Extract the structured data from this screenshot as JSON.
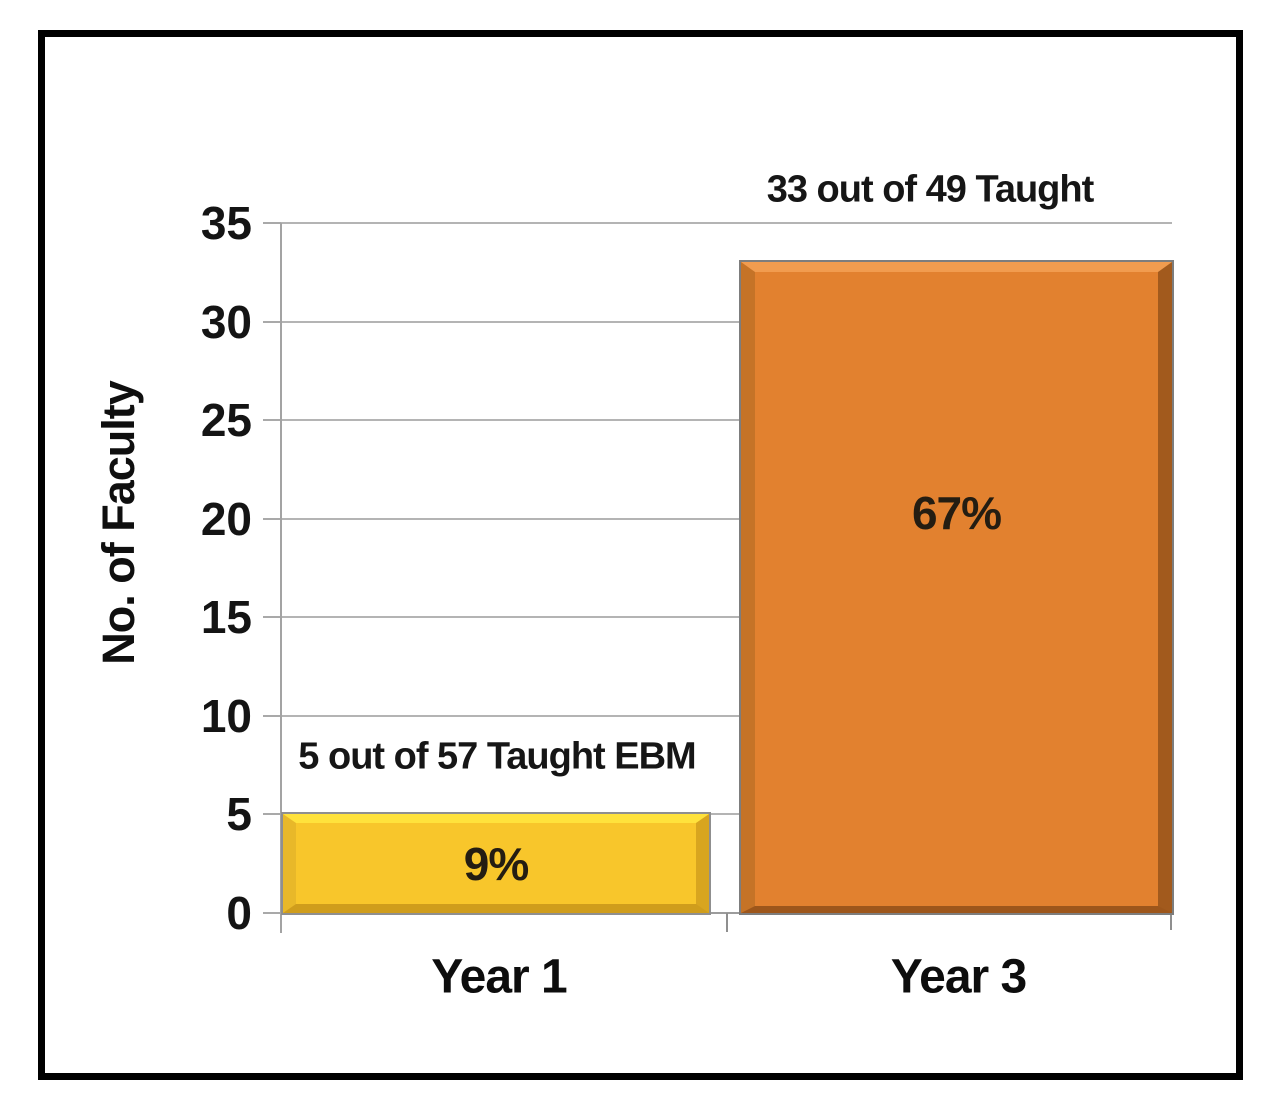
{
  "chart_data": {
    "type": "bar",
    "title": "",
    "ylabel": "No. of Faculty",
    "xlabel": "",
    "categories": [
      "Year 1",
      "Year 3"
    ],
    "values": [
      5,
      33
    ],
    "bar_labels": [
      "9%",
      "67%"
    ],
    "annotations": [
      "5 out of 57 Taught EBM",
      "33 out of 49 Taught"
    ],
    "bar_colors": [
      "#f8c62b",
      "#e2812f"
    ],
    "yticks": [
      0,
      5,
      10,
      15,
      20,
      25,
      30,
      35
    ],
    "ylim": [
      0,
      35
    ],
    "grid": true,
    "legend": "none",
    "gridline_color": "#b4b4b4",
    "frame_color": "#000000",
    "text_color": "#1a1a1a"
  }
}
